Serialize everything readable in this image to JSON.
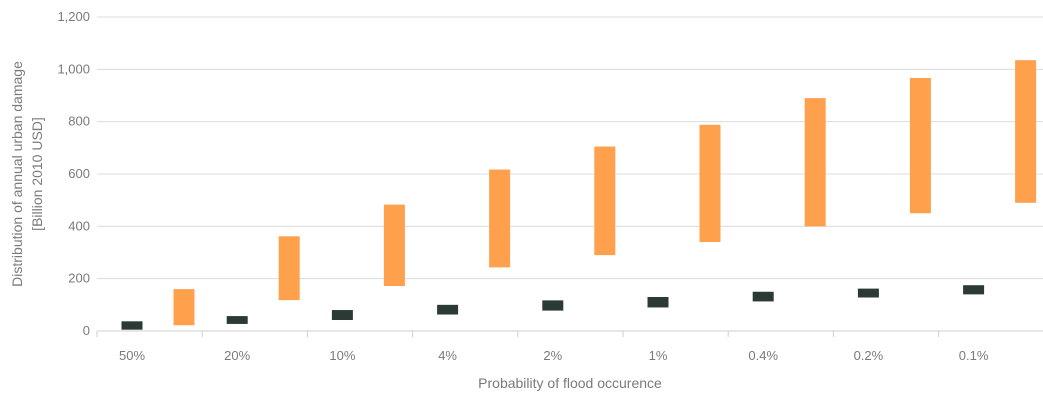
{
  "chart_data": {
    "type": "floating-bar",
    "title": "",
    "xlabel": "Probability of flood occurence",
    "ylabel_line1": "Distribution of annual urban damage",
    "ylabel_line2": "[Billion 2010 USD]",
    "ylim": [
      0,
      1200
    ],
    "yticks": [
      0,
      200,
      400,
      600,
      800,
      1000,
      1200
    ],
    "ytick_labels": [
      "0",
      "200",
      "400",
      "600",
      "800",
      "1,000",
      "1,200"
    ],
    "grid": true,
    "categories": [
      "50%",
      "20%",
      "10%",
      "4%",
      "2%",
      "1%",
      "0.4%",
      "0.2%",
      "0.1%"
    ],
    "series": [
      {
        "color": "#2b3a35",
        "low": [
          5,
          27,
          42,
          63,
          78,
          90,
          113,
          128,
          140
        ],
        "high": [
          37,
          57,
          80,
          100,
          117,
          130,
          150,
          162,
          175
        ]
      },
      {
        "color": "#ffa04d",
        "low": [
          22,
          118,
          172,
          243,
          290,
          340,
          400,
          450,
          490
        ],
        "high": [
          160,
          362,
          483,
          617,
          705,
          788,
          890,
          967,
          1035
        ]
      }
    ]
  }
}
